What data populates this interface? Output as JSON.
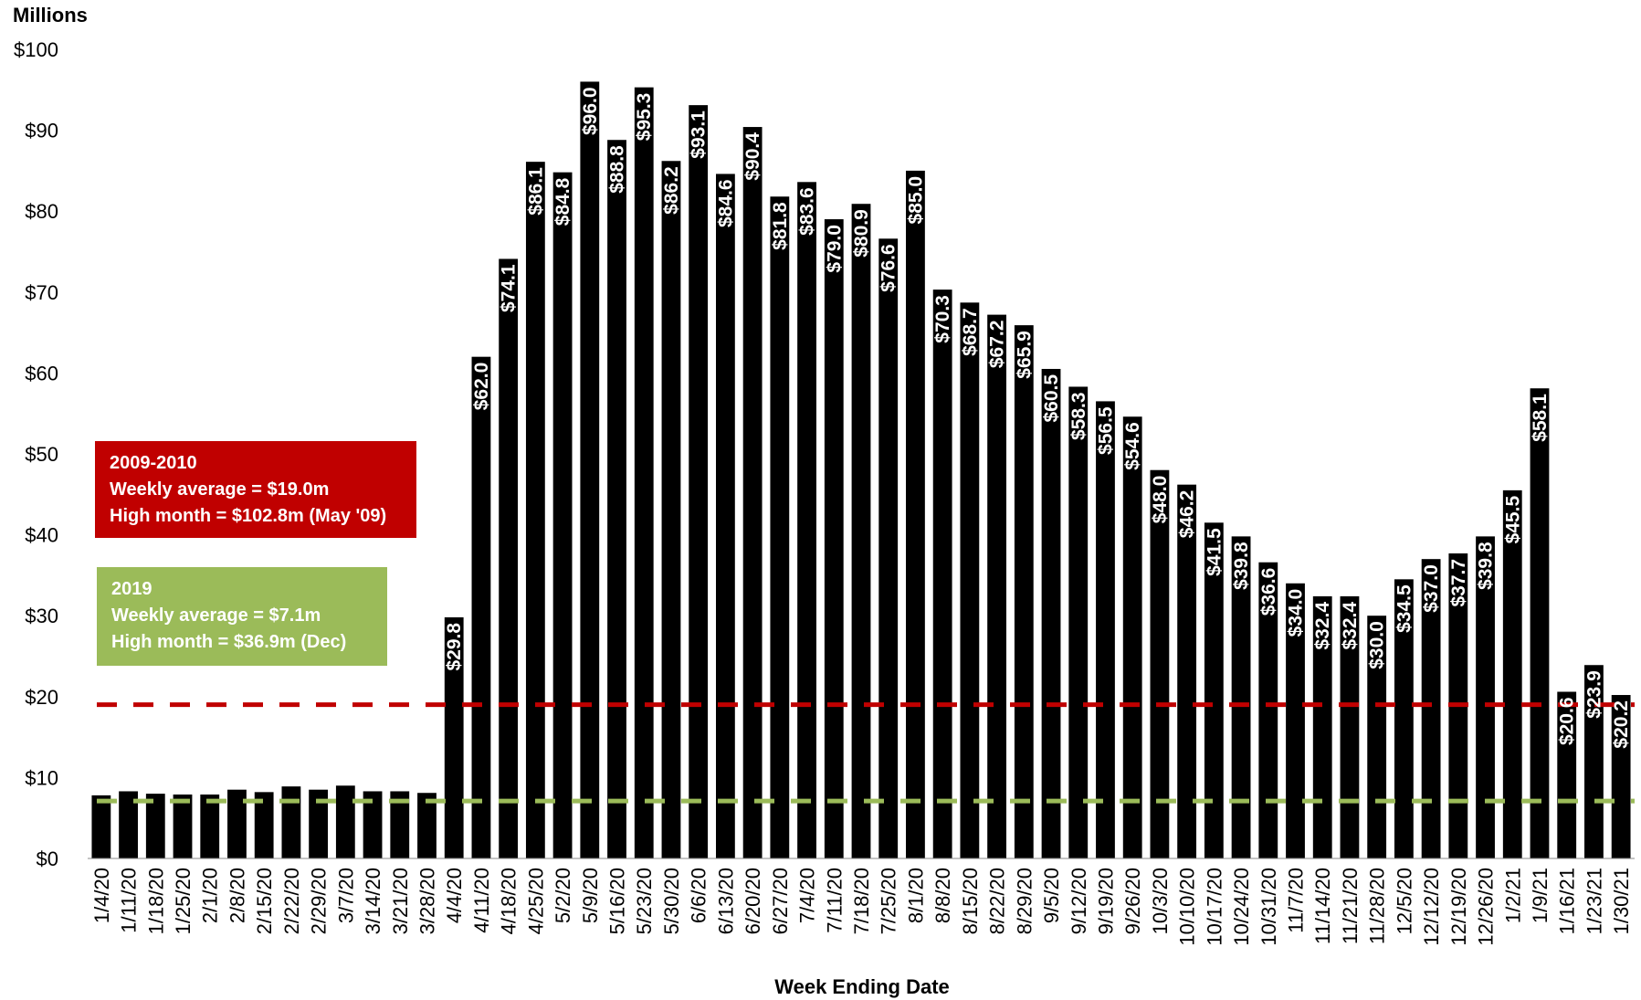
{
  "chart_data": {
    "type": "bar",
    "ylabel": "Millions",
    "xlabel": "Week Ending Date",
    "ylim": [
      0,
      100
    ],
    "yticks": [
      "$0",
      "$10",
      "$20",
      "$30",
      "$40",
      "$50",
      "$60",
      "$70",
      "$80",
      "$90",
      "$100"
    ],
    "categories": [
      "1/4/20",
      "1/11/20",
      "1/18/20",
      "1/25/20",
      "2/1/20",
      "2/8/20",
      "2/15/20",
      "2/22/20",
      "2/29/20",
      "3/7/20",
      "3/14/20",
      "3/21/20",
      "3/28/20",
      "4/4/20",
      "4/11/20",
      "4/18/20",
      "4/25/20",
      "5/2/20",
      "5/9/20",
      "5/16/20",
      "5/23/20",
      "5/30/20",
      "6/6/20",
      "6/13/20",
      "6/20/20",
      "6/27/20",
      "7/4/20",
      "7/11/20",
      "7/18/20",
      "7/25/20",
      "8/1/20",
      "8/8/20",
      "8/15/20",
      "8/22/20",
      "8/29/20",
      "9/5/20",
      "9/12/20",
      "9/19/20",
      "9/26/20",
      "10/3/20",
      "10/10/20",
      "10/17/20",
      "10/24/20",
      "10/31/20",
      "11/7/20",
      "11/14/20",
      "11/21/20",
      "11/28/20",
      "12/5/20",
      "12/12/20",
      "12/19/20",
      "12/26/20",
      "1/2/21",
      "1/9/21",
      "1/16/21",
      "1/23/21",
      "1/30/21"
    ],
    "values": [
      7.8,
      8.3,
      8.0,
      7.9,
      7.9,
      8.5,
      8.2,
      8.9,
      8.5,
      9.0,
      8.3,
      8.3,
      8.1,
      29.8,
      62.0,
      74.1,
      86.1,
      84.8,
      96.0,
      88.8,
      95.3,
      86.2,
      93.1,
      84.6,
      90.4,
      81.8,
      83.6,
      79.0,
      80.9,
      76.6,
      85.0,
      70.3,
      68.7,
      67.2,
      65.9,
      60.5,
      58.3,
      56.5,
      54.6,
      48.0,
      46.2,
      41.5,
      39.8,
      36.6,
      34.0,
      32.4,
      32.4,
      30.0,
      34.5,
      37.0,
      37.7,
      39.8,
      45.5,
      58.1,
      20.6,
      23.9,
      20.2
    ],
    "data_labels": [
      null,
      null,
      null,
      null,
      null,
      null,
      null,
      null,
      null,
      null,
      null,
      null,
      null,
      "$29.8",
      "$62.0",
      "$74.1",
      "$86.1",
      "$84.8",
      "$96.0",
      "$88.8",
      "$95.3",
      "$86.2",
      "$93.1",
      "$84.6",
      "$90.4",
      "$81.8",
      "$83.6",
      "$79.0",
      "$80.9",
      "$76.6",
      "$85.0",
      "$70.3",
      "$68.7",
      "$67.2",
      "$65.9",
      "$60.5",
      "$58.3",
      "$56.5",
      "$54.6",
      "$48.0",
      "$46.2",
      "$41.5",
      "$39.8",
      "$36.6",
      "$34.0",
      "$32.4",
      "$32.4",
      "$30.0",
      "$34.5",
      "$37.0",
      "$37.7",
      "$39.8",
      "$45.5",
      "$58.1",
      "$20.6",
      "$23.9",
      "$20.2"
    ],
    "bar_color": "#000000",
    "reference_lines": [
      {
        "value": 19.0,
        "color": "#c00000",
        "style": "dashed"
      },
      {
        "value": 7.1,
        "color": "#9bbb59",
        "style": "dashed"
      }
    ],
    "annotations": [
      {
        "color": "#c00000",
        "lines": [
          "2009-2010",
          "Weekly average = $19.0m",
          "High month = $102.8m (May '09)"
        ]
      },
      {
        "color": "#9bbb59",
        "lines": [
          "2019",
          "Weekly average = $7.1m",
          "High month = $36.9m (Dec)"
        ]
      }
    ]
  }
}
